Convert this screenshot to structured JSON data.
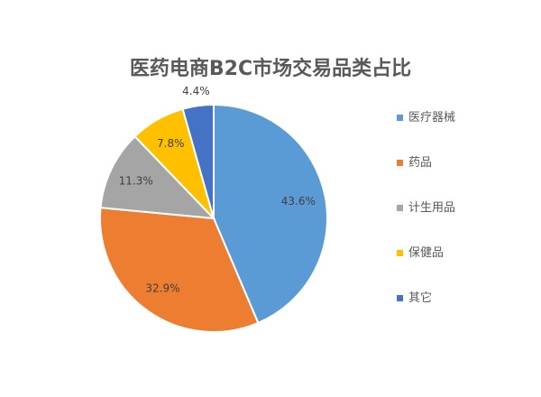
{
  "chart_data": {
    "type": "pie",
    "title": "医药电商B2C市场交易品类占比",
    "categories": [
      "医疗器械",
      "药品",
      "计生用品",
      "保健品",
      "其它"
    ],
    "values": [
      43.6,
      32.9,
      11.3,
      7.8,
      4.4
    ],
    "labels": [
      "43.6%",
      "32.9%",
      "11.3%",
      "7.8%",
      "4.4%"
    ],
    "colors": [
      "#5B9BD5",
      "#ED7D31",
      "#A5A5A5",
      "#FFC000",
      "#4472C4"
    ],
    "start_angle": "12 o'clock",
    "direction": "clockwise",
    "legend_position": "right"
  }
}
